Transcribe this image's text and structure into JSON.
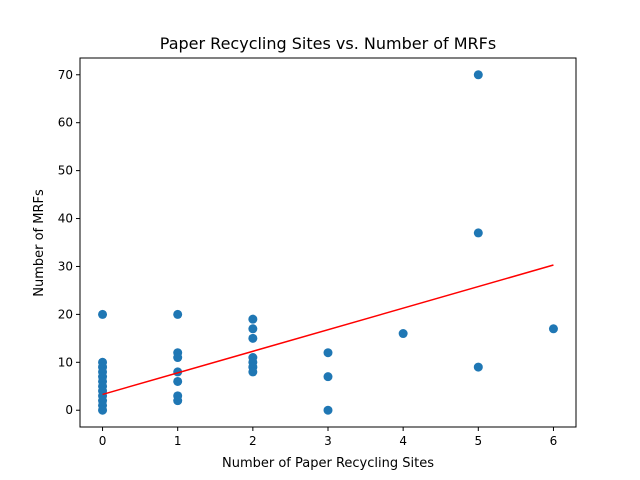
{
  "chart_data": {
    "type": "scatter",
    "title": "Paper Recycling Sites vs. Number of MRFs",
    "xlabel": "Number of Paper Recycling Sites",
    "ylabel": "Number of MRFs",
    "xlim": [
      -0.3,
      6.3
    ],
    "ylim": [
      -3.5,
      73.5
    ],
    "xticks": [
      0,
      1,
      2,
      3,
      4,
      5,
      6
    ],
    "yticks": [
      0,
      10,
      20,
      30,
      40,
      50,
      60,
      70
    ],
    "grid": false,
    "colors": {
      "points": "#1f77b4",
      "trend": "#ff0000"
    },
    "points": [
      {
        "x": 0,
        "y": 20
      },
      {
        "x": 0,
        "y": 10
      },
      {
        "x": 0,
        "y": 9
      },
      {
        "x": 0,
        "y": 8
      },
      {
        "x": 0,
        "y": 7
      },
      {
        "x": 0,
        "y": 6
      },
      {
        "x": 0,
        "y": 5
      },
      {
        "x": 0,
        "y": 4
      },
      {
        "x": 0,
        "y": 3
      },
      {
        "x": 0,
        "y": 2
      },
      {
        "x": 0,
        "y": 1
      },
      {
        "x": 0,
        "y": 0
      },
      {
        "x": 1,
        "y": 20
      },
      {
        "x": 1,
        "y": 12
      },
      {
        "x": 1,
        "y": 11
      },
      {
        "x": 1,
        "y": 8
      },
      {
        "x": 1,
        "y": 6
      },
      {
        "x": 1,
        "y": 3
      },
      {
        "x": 1,
        "y": 2
      },
      {
        "x": 2,
        "y": 19
      },
      {
        "x": 2,
        "y": 17
      },
      {
        "x": 2,
        "y": 15
      },
      {
        "x": 2,
        "y": 11
      },
      {
        "x": 2,
        "y": 10
      },
      {
        "x": 2,
        "y": 9
      },
      {
        "x": 2,
        "y": 8
      },
      {
        "x": 3,
        "y": 12
      },
      {
        "x": 3,
        "y": 7
      },
      {
        "x": 3,
        "y": 0
      },
      {
        "x": 4,
        "y": 16
      },
      {
        "x": 5,
        "y": 70
      },
      {
        "x": 5,
        "y": 37
      },
      {
        "x": 5,
        "y": 9
      },
      {
        "x": 6,
        "y": 17
      }
    ],
    "trendline": {
      "x": [
        0,
        6
      ],
      "y": [
        3.3,
        30.3
      ]
    }
  }
}
